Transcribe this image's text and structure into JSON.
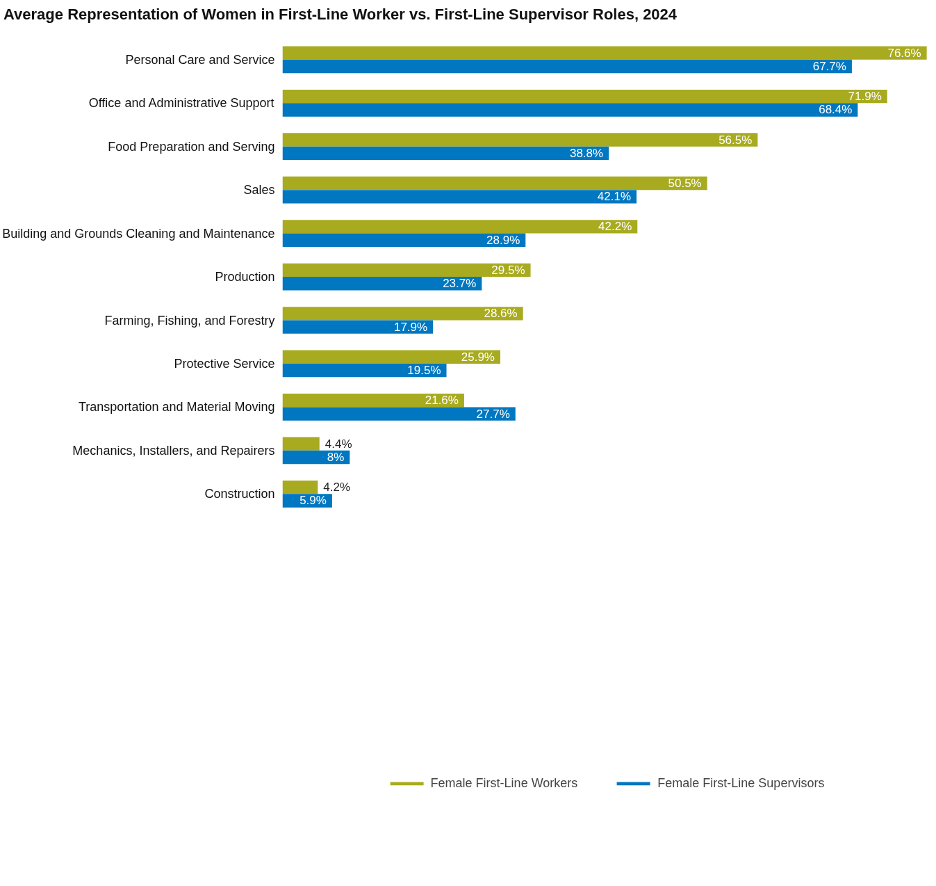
{
  "chart_data": {
    "type": "bar",
    "orientation": "horizontal",
    "title": "Average Representation of Women in First-Line Worker vs. First-Line Supervisor Roles, 2024",
    "categories": [
      "Personal Care and Service",
      "Office and Administrative Support",
      "Food Preparation and Serving",
      "Sales",
      "Building and Grounds Cleaning and Maintenance",
      "Production",
      "Farming, Fishing, and Forestry",
      "Protective Service",
      "Transportation and Material Moving",
      "Mechanics, Installers, and Repairers",
      "Construction"
    ],
    "series": [
      {
        "name": "Female First-Line Workers",
        "color": "#a8ab1f",
        "values": [
          76.6,
          71.9,
          56.5,
          50.5,
          42.2,
          29.5,
          28.6,
          25.9,
          21.6,
          4.4,
          4.2
        ],
        "value_labels": [
          "76.6%",
          "71.9%",
          "56.5%",
          "50.5%",
          "42.2%",
          "29.5%",
          "28.6%",
          "25.9%",
          "21.6%",
          "4.4%",
          "4.2%"
        ]
      },
      {
        "name": "Female First-Line Supervisors",
        "color": "#0077c0",
        "values": [
          67.7,
          68.4,
          38.8,
          42.1,
          28.9,
          23.7,
          17.9,
          19.5,
          27.7,
          8,
          5.9
        ],
        "value_labels": [
          "67.7%",
          "68.4%",
          "38.8%",
          "42.1%",
          "28.9%",
          "23.7%",
          "17.9%",
          "19.5%",
          "27.7%",
          "8%",
          "5.9%"
        ]
      }
    ],
    "legend": "bottom",
    "grid": false
  }
}
